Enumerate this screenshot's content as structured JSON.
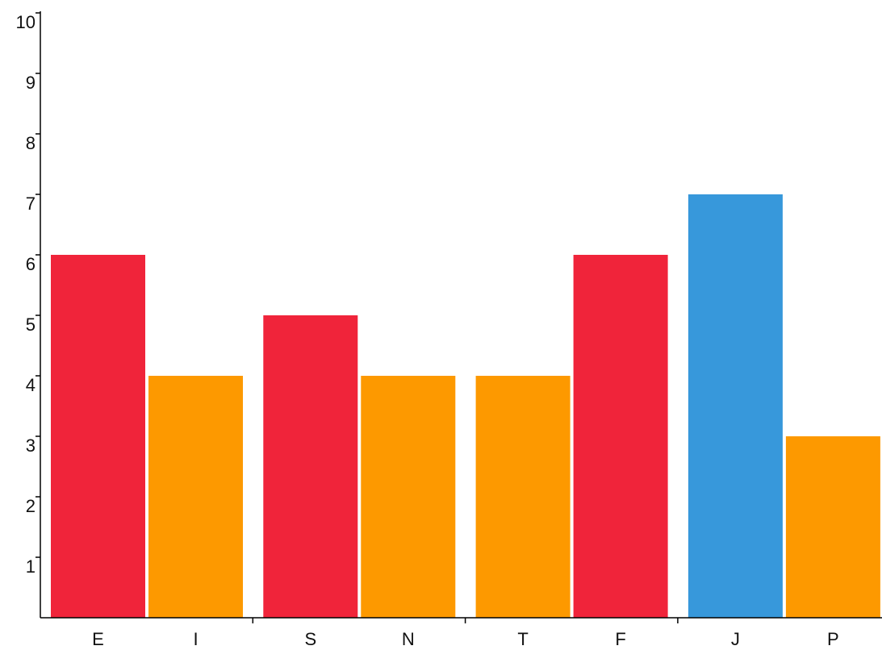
{
  "chart_data": {
    "type": "bar",
    "categories": [
      "E",
      "I",
      "S",
      "N",
      "T",
      "F",
      "J",
      "P"
    ],
    "values": [
      6,
      4,
      5,
      4,
      4,
      6,
      7,
      3
    ],
    "colors": [
      "#f0243a",
      "#fd9900",
      "#f0243a",
      "#fd9900",
      "#fd9900",
      "#f0243a",
      "#3798db",
      "#fd9900"
    ],
    "ylim": [
      0,
      10
    ],
    "yticks": [
      1,
      2,
      3,
      4,
      5,
      6,
      7,
      8,
      9,
      10
    ]
  }
}
